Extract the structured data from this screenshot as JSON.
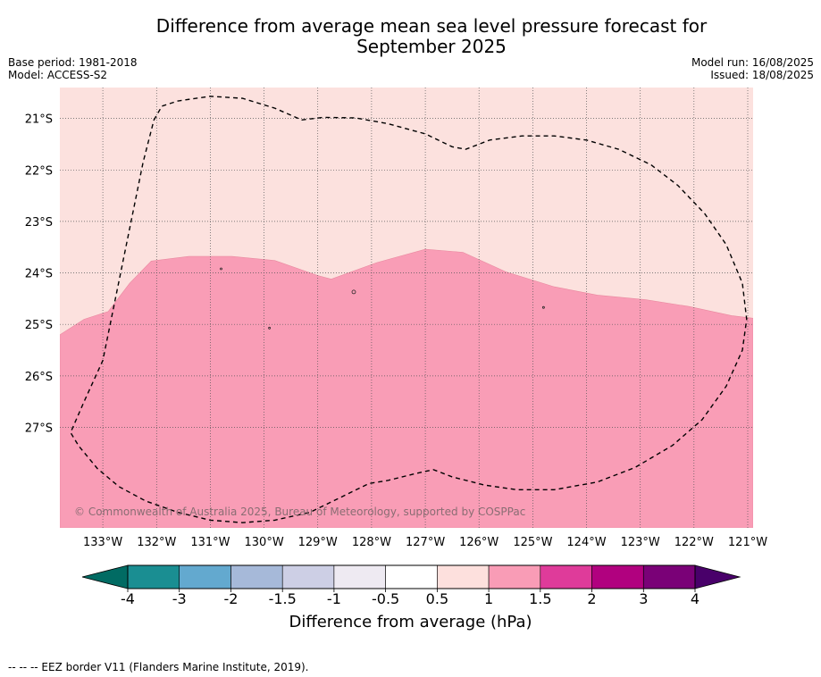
{
  "title_line1": "Difference from average mean sea level pressure forecast for",
  "title_line2": "September 2025",
  "meta_left": [
    "Base period: 1981-2018",
    "Model: ACCESS-S2"
  ],
  "meta_right": [
    "Model run: 16/08/2025",
    "Issued: 18/08/2025"
  ],
  "map": {
    "lon_range": [
      -133.8,
      -120.9
    ],
    "lat_range": [
      -28.95,
      -20.4
    ],
    "lon_ticks": [
      {
        "value": -133,
        "label": "133°W"
      },
      {
        "value": -132,
        "label": "132°W"
      },
      {
        "value": -131,
        "label": "131°W"
      },
      {
        "value": -130,
        "label": "130°W"
      },
      {
        "value": -129,
        "label": "129°W"
      },
      {
        "value": -128,
        "label": "128°W"
      },
      {
        "value": -127,
        "label": "127°W"
      },
      {
        "value": -126,
        "label": "126°W"
      },
      {
        "value": -125,
        "label": "125°W"
      },
      {
        "value": -124,
        "label": "124°W"
      },
      {
        "value": -123,
        "label": "123°W"
      },
      {
        "value": -122,
        "label": "122°W"
      },
      {
        "value": -121,
        "label": "121°W"
      }
    ],
    "lat_ticks": [
      {
        "value": -21,
        "label": "21°S"
      },
      {
        "value": -22,
        "label": "22°S"
      },
      {
        "value": -23,
        "label": "23°S"
      },
      {
        "value": -24,
        "label": "24°S"
      },
      {
        "value": -25,
        "label": "25°S"
      },
      {
        "value": -26,
        "label": "26°S"
      },
      {
        "value": -27,
        "label": "27°S"
      }
    ],
    "upper_fill_color": "#fce1de",
    "lower_fill_color": "#f99db6",
    "contour_boundary": [
      [
        -133.8,
        -25.2
      ],
      [
        -133.35,
        -24.9
      ],
      [
        -132.9,
        -24.75
      ],
      [
        -132.5,
        -24.2
      ],
      [
        -132.1,
        -23.77
      ],
      [
        -131.4,
        -23.68
      ],
      [
        -130.6,
        -23.68
      ],
      [
        -129.8,
        -23.76
      ],
      [
        -129.0,
        -24.05
      ],
      [
        -128.75,
        -24.12
      ],
      [
        -127.9,
        -23.8
      ],
      [
        -127.0,
        -23.54
      ],
      [
        -126.3,
        -23.6
      ],
      [
        -125.5,
        -23.98
      ],
      [
        -124.6,
        -24.27
      ],
      [
        -123.8,
        -24.43
      ],
      [
        -122.9,
        -24.52
      ],
      [
        -122.1,
        -24.65
      ],
      [
        -121.3,
        -24.83
      ],
      [
        -120.9,
        -24.88
      ]
    ],
    "eez_border": [
      [
        -132.05,
        -21.03
      ],
      [
        -131.9,
        -20.76
      ],
      [
        -131.6,
        -20.66
      ],
      [
        -131.0,
        -20.57
      ],
      [
        -130.4,
        -20.61
      ],
      [
        -129.8,
        -20.8
      ],
      [
        -129.3,
        -21.03
      ],
      [
        -128.9,
        -20.98
      ],
      [
        -128.3,
        -20.99
      ],
      [
        -127.7,
        -21.1
      ],
      [
        -127.0,
        -21.3
      ],
      [
        -126.5,
        -21.55
      ],
      [
        -126.25,
        -21.6
      ],
      [
        -125.8,
        -21.42
      ],
      [
        -125.2,
        -21.34
      ],
      [
        -124.6,
        -21.34
      ],
      [
        -124.0,
        -21.42
      ],
      [
        -123.4,
        -21.6
      ],
      [
        -122.8,
        -21.9
      ],
      [
        -122.3,
        -22.3
      ],
      [
        -121.8,
        -22.85
      ],
      [
        -121.4,
        -23.45
      ],
      [
        -121.1,
        -24.2
      ],
      [
        -121.02,
        -24.9
      ],
      [
        -121.1,
        -25.5
      ],
      [
        -121.4,
        -26.2
      ],
      [
        -121.85,
        -26.85
      ],
      [
        -122.4,
        -27.35
      ],
      [
        -123.1,
        -27.78
      ],
      [
        -123.8,
        -28.06
      ],
      [
        -124.6,
        -28.21
      ],
      [
        -125.3,
        -28.21
      ],
      [
        -125.9,
        -28.12
      ],
      [
        -126.5,
        -27.96
      ],
      [
        -126.85,
        -27.82
      ],
      [
        -127.2,
        -27.9
      ],
      [
        -127.7,
        -28.03
      ],
      [
        -128.05,
        -28.09
      ],
      [
        -128.6,
        -28.37
      ],
      [
        -129.15,
        -28.65
      ],
      [
        -129.8,
        -28.8
      ],
      [
        -130.4,
        -28.85
      ],
      [
        -131.0,
        -28.8
      ],
      [
        -131.6,
        -28.65
      ],
      [
        -132.2,
        -28.43
      ],
      [
        -132.7,
        -28.15
      ],
      [
        -133.1,
        -27.8
      ],
      [
        -133.45,
        -27.36
      ],
      [
        -133.6,
        -27.1
      ],
      [
        -133.35,
        -26.5
      ],
      [
        -133.0,
        -25.7
      ],
      [
        -132.65,
        -23.9
      ],
      [
        -132.25,
        -21.85
      ],
      [
        -132.05,
        -21.03
      ]
    ],
    "copyright": "© Commonwealth of Australia 2025, Bureau of Meteorology, supported by COSPPac"
  },
  "colorbar": {
    "ticks": [
      "-4",
      "-3",
      "-2",
      "-1.5",
      "-1",
      "-0.5",
      "0.5",
      "1",
      "1.5",
      "2",
      "3",
      "4"
    ],
    "colors": [
      "#1a8e92",
      "#63a9cf",
      "#a6b9d9",
      "#cdcfe5",
      "#eeeaf2",
      "#ffffff",
      "#fde0dd",
      "#f99cb6",
      "#df3b9a",
      "#b1017f",
      "#7a0177"
    ],
    "low_extend_color": "#016b63",
    "high_extend_color": "#49006a",
    "label": "Difference from average (hPa)"
  },
  "footnote": "--  --  -- EEZ border V11 (Flanders Marine Institute, 2019)."
}
